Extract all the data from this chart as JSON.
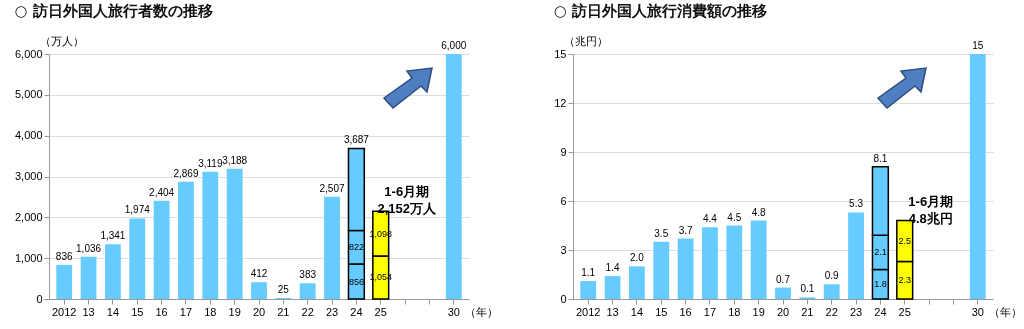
{
  "chart_data": [
    {
      "type": "bar",
      "stacked": true,
      "title": "○ 訪日外国人旅行者数の推移",
      "ylabel": "（万人）",
      "xlabel": "（年）",
      "categories": [
        "2012",
        "13",
        "14",
        "15",
        "16",
        "17",
        "18",
        "19",
        "20",
        "21",
        "22",
        "23",
        "24",
        "25",
        null,
        null,
        "30"
      ],
      "series": [
        {
          "color": "#66ccff",
          "values": [
            836,
            1036,
            1341,
            1974,
            2404,
            2869,
            3119,
            3188,
            412,
            25,
            383,
            2507,
            null,
            null,
            null,
            null,
            6000
          ]
        },
        {
          "color": "#66ccff",
          "values": [
            null,
            null,
            null,
            null,
            null,
            null,
            null,
            null,
            null,
            null,
            null,
            null,
            856,
            null,
            null,
            null,
            null
          ],
          "value_labels": [
            null,
            null,
            null,
            null,
            null,
            null,
            null,
            null,
            null,
            null,
            null,
            null,
            "856",
            null,
            null,
            null,
            null
          ]
        },
        {
          "color": "#66ccff",
          "values": [
            null,
            null,
            null,
            null,
            null,
            null,
            null,
            null,
            null,
            null,
            null,
            null,
            822,
            null,
            null,
            null,
            null
          ],
          "value_labels": [
            null,
            null,
            null,
            null,
            null,
            null,
            null,
            null,
            null,
            null,
            null,
            null,
            "822",
            null,
            null,
            null,
            null
          ]
        },
        {
          "color": "#66ccff",
          "values": [
            null,
            null,
            null,
            null,
            null,
            null,
            null,
            null,
            null,
            null,
            null,
            null,
            2009,
            null,
            null,
            null,
            null
          ]
        },
        {
          "color": "#ffff00",
          "values": [
            null,
            null,
            null,
            null,
            null,
            null,
            null,
            null,
            null,
            null,
            null,
            null,
            null,
            1054,
            null,
            null,
            null
          ],
          "value_labels": [
            null,
            null,
            null,
            null,
            null,
            null,
            null,
            null,
            null,
            null,
            null,
            null,
            null,
            "1,054",
            null,
            null,
            null
          ]
        },
        {
          "color": "#ffff00",
          "values": [
            null,
            null,
            null,
            null,
            null,
            null,
            null,
            null,
            null,
            null,
            null,
            null,
            null,
            1098,
            null,
            null,
            null
          ],
          "value_labels": [
            null,
            null,
            null,
            null,
            null,
            null,
            null,
            null,
            null,
            null,
            null,
            null,
            null,
            "1,098",
            null,
            null,
            null
          ]
        }
      ],
      "totals": [
        "836",
        "1,036",
        "1,341",
        "1,974",
        "2,404",
        "2,869",
        "3,119",
        "3,188",
        "412",
        "25",
        "383",
        "2,507",
        "3,687",
        null,
        null,
        null,
        "6,000"
      ],
      "annotations": [
        {
          "text": "1-6月期\n2,152万人",
          "x": "25",
          "y": 2152
        }
      ],
      "ylim": [
        0,
        6000
      ],
      "yticks": [
        0,
        {
          "value": 1000,
          "label": "1,000"
        },
        {
          "value": 2000,
          "label": "2,000"
        },
        {
          "value": 3000,
          "label": "3,000"
        },
        {
          "value": 4000,
          "label": "4,000"
        },
        {
          "value": 5000,
          "label": "5,000"
        },
        {
          "value": 6000,
          "label": "6,000"
        }
      ],
      "grid": "y"
    },
    {
      "type": "bar",
      "stacked": true,
      "title": "○ 訪日外国人旅行消費額の推移",
      "ylabel": "（兆円）",
      "xlabel": "（年）",
      "categories": [
        "2012",
        "13",
        "14",
        "15",
        "16",
        "17",
        "18",
        "19",
        "20",
        "21",
        "22",
        "23",
        "24",
        "25",
        null,
        null,
        "30"
      ],
      "series": [
        {
          "color": "#66ccff",
          "values": [
            1.1,
            1.4,
            2.0,
            3.5,
            3.7,
            4.4,
            4.5,
            4.8,
            0.7,
            0.1,
            0.9,
            5.3,
            null,
            null,
            null,
            null,
            15
          ]
        },
        {
          "color": "#66ccff",
          "values": [
            null,
            null,
            null,
            null,
            null,
            null,
            null,
            null,
            null,
            null,
            null,
            null,
            1.8,
            null,
            null,
            null,
            null
          ],
          "value_labels": [
            null,
            null,
            null,
            null,
            null,
            null,
            null,
            null,
            null,
            null,
            null,
            null,
            "1.8",
            null,
            null,
            null,
            null
          ]
        },
        {
          "color": "#66ccff",
          "values": [
            null,
            null,
            null,
            null,
            null,
            null,
            null,
            null,
            null,
            null,
            null,
            null,
            2.1,
            null,
            null,
            null,
            null
          ],
          "value_labels": [
            null,
            null,
            null,
            null,
            null,
            null,
            null,
            null,
            null,
            null,
            null,
            null,
            "2.1",
            null,
            null,
            null,
            null
          ]
        },
        {
          "color": "#66ccff",
          "values": [
            null,
            null,
            null,
            null,
            null,
            null,
            null,
            null,
            null,
            null,
            null,
            null,
            4.2,
            null,
            null,
            null,
            null
          ]
        },
        {
          "color": "#ffff00",
          "values": [
            null,
            null,
            null,
            null,
            null,
            null,
            null,
            null,
            null,
            null,
            null,
            null,
            null,
            2.3,
            null,
            null,
            null
          ],
          "value_labels": [
            null,
            null,
            null,
            null,
            null,
            null,
            null,
            null,
            null,
            null,
            null,
            null,
            null,
            "2.3",
            null,
            null,
            null
          ]
        },
        {
          "color": "#ffff00",
          "values": [
            null,
            null,
            null,
            null,
            null,
            null,
            null,
            null,
            null,
            null,
            null,
            null,
            null,
            2.5,
            null,
            null,
            null
          ],
          "value_labels": [
            null,
            null,
            null,
            null,
            null,
            null,
            null,
            null,
            null,
            null,
            null,
            null,
            null,
            "2.5",
            null,
            null,
            null
          ]
        }
      ],
      "totals": [
        "1.1",
        "1.4",
        "2.0",
        "3.5",
        "3.7",
        "4.4",
        "4.5",
        "4.8",
        "0.7",
        "0.1",
        "0.9",
        "5.3",
        "8.1",
        null,
        null,
        null,
        "15"
      ],
      "annotations": [
        {
          "text": "1-6月期\n4.8兆円",
          "x": "25",
          "y": 4.8
        }
      ],
      "ylim": [
        0,
        15
      ],
      "yticks": [
        0,
        3,
        6,
        9,
        12,
        15
      ],
      "grid": "y"
    }
  ]
}
